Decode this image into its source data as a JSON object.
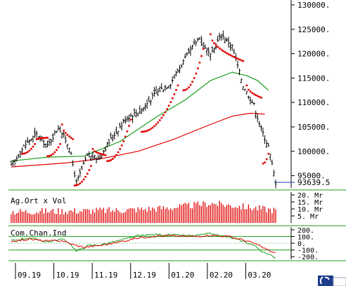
{
  "chart_data": [
    {
      "panel": "price",
      "type": "ohlc",
      "y_ticks": [
        95000,
        100000,
        105000,
        110000,
        115000,
        120000,
        125000,
        130000
      ],
      "y_tick_labels": [
        "95000.",
        "100000.",
        "105000.",
        "110000.",
        "115000.",
        "120000.",
        "125000.",
        "130000."
      ],
      "ylim": [
        92500,
        131000
      ],
      "last_value": 93639.5,
      "last_value_label": "93639.5",
      "x_labels": [
        "09.19",
        "10.19",
        "11.19",
        "12.19",
        "01.20",
        "02.20",
        "03.20"
      ],
      "grid": false,
      "anchors": [
        [
          0,
          97000
        ],
        [
          8,
          101500
        ],
        [
          14,
          103500
        ],
        [
          20,
          101000
        ],
        [
          26,
          105000
        ],
        [
          32,
          101000
        ],
        [
          36,
          93500
        ],
        [
          42,
          99000
        ],
        [
          48,
          98500
        ],
        [
          56,
          103000
        ],
        [
          64,
          107000
        ],
        [
          72,
          108500
        ],
        [
          80,
          112000
        ],
        [
          88,
          114000
        ],
        [
          96,
          119000
        ],
        [
          104,
          123500
        ],
        [
          110,
          119500
        ],
        [
          116,
          124000
        ],
        [
          122,
          121500
        ],
        [
          128,
          113500
        ],
        [
          134,
          109500
        ],
        [
          138,
          104500
        ],
        [
          142,
          101000
        ],
        [
          146,
          93640
        ]
      ],
      "overlays": [
        {
          "kind": "moving-average",
          "color": "#1a9e1a",
          "points": [
            [
              0,
              98000
            ],
            [
              20,
              98800
            ],
            [
              40,
              99000
            ],
            [
              60,
              102000
            ],
            [
              80,
              107000
            ],
            [
              96,
              110500
            ],
            [
              110,
              114500
            ],
            [
              122,
              116200
            ],
            [
              130,
              115500
            ],
            [
              136,
              114500
            ],
            [
              142,
              112500
            ]
          ]
        },
        {
          "kind": "moving-average",
          "color": "#e00000",
          "points": [
            [
              0,
              96800
            ],
            [
              30,
              97600
            ],
            [
              50,
              98500
            ],
            [
              70,
              100000
            ],
            [
              90,
              102500
            ],
            [
              110,
              105500
            ],
            [
              122,
              107200
            ],
            [
              132,
              107800
            ],
            [
              140,
              107600
            ]
          ]
        },
        {
          "kind": "parabolic-sar",
          "color": "#e00000",
          "segments": [
            {
              "from": 6,
              "to": 13,
              "start": 99500,
              "end": 101500,
              "pos": "below"
            },
            {
              "from": 14,
              "to": 20,
              "start": 102500,
              "end": 102800,
              "pos": "above"
            },
            {
              "from": 20,
              "to": 27,
              "start": 99000,
              "end": 101500,
              "pos": "below"
            },
            {
              "from": 28,
              "to": 34,
              "start": 105500,
              "end": 102500,
              "pos": "above"
            },
            {
              "from": 35,
              "to": 44,
              "start": 93000,
              "end": 97000,
              "pos": "below"
            },
            {
              "from": 45,
              "to": 52,
              "start": 100500,
              "end": 99200,
              "pos": "above"
            },
            {
              "from": 53,
              "to": 66,
              "start": 98000,
              "end": 106500,
              "pos": "below"
            },
            {
              "from": 72,
              "to": 92,
              "start": 104000,
              "end": 113500,
              "pos": "below"
            },
            {
              "from": 95,
              "to": 106,
              "start": 112500,
              "end": 121000,
              "pos": "below"
            },
            {
              "from": 110,
              "to": 128,
              "start": 124000,
              "end": 118500,
              "pos": "above"
            },
            {
              "from": 130,
              "to": 138,
              "start": 113500,
              "end": 111000,
              "pos": "above"
            },
            {
              "from": 139,
              "to": 142,
              "start": 97500,
              "end": 99500,
              "pos": "below"
            }
          ]
        }
      ]
    },
    {
      "panel": "volume",
      "type": "bar",
      "label": "Ag.Ort x Vol",
      "color": "#e00000",
      "y_ticks": [
        5,
        10,
        15,
        20
      ],
      "y_tick_labels": [
        "5. Mr",
        "10. Mr",
        "15. Mr",
        "20. Mr"
      ],
      "ylim": [
        0,
        22
      ],
      "anchors": [
        [
          0,
          8
        ],
        [
          30,
          8.5
        ],
        [
          60,
          9
        ],
        [
          90,
          11
        ],
        [
          110,
          14
        ],
        [
          125,
          12
        ],
        [
          146,
          9
        ]
      ]
    },
    {
      "panel": "oscillator",
      "type": "line",
      "label": "Com.Chan.Ind",
      "y_ticks": [
        -200,
        -100,
        0,
        100,
        200
      ],
      "y_tick_labels": [
        "-200.",
        "-100.",
        "0.",
        "100.",
        "200."
      ],
      "ylim": [
        -240,
        240
      ],
      "reference_lines": [
        -100,
        100
      ],
      "series": [
        {
          "color": "#1a9e1a",
          "points": [
            [
              0,
              40
            ],
            [
              10,
              80
            ],
            [
              20,
              20
            ],
            [
              28,
              60
            ],
            [
              32,
              10
            ],
            [
              36,
              -120
            ],
            [
              42,
              -40
            ],
            [
              50,
              -20
            ],
            [
              60,
              40
            ],
            [
              70,
              110
            ],
            [
              80,
              130
            ],
            [
              90,
              120
            ],
            [
              100,
              110
            ],
            [
              110,
              140
            ],
            [
              120,
              90
            ],
            [
              128,
              30
            ],
            [
              134,
              -30
            ],
            [
              140,
              -150
            ],
            [
              146,
              -210
            ]
          ]
        },
        {
          "color": "#e00000",
          "points": [
            [
              0,
              30
            ],
            [
              10,
              60
            ],
            [
              20,
              30
            ],
            [
              28,
              40
            ],
            [
              34,
              -20
            ],
            [
              40,
              -60
            ],
            [
              50,
              -30
            ],
            [
              60,
              20
            ],
            [
              70,
              80
            ],
            [
              80,
              110
            ],
            [
              90,
              110
            ],
            [
              100,
              100
            ],
            [
              110,
              120
            ],
            [
              120,
              100
            ],
            [
              128,
              50
            ],
            [
              134,
              0
            ],
            [
              140,
              -80
            ],
            [
              146,
              -150
            ]
          ]
        }
      ]
    }
  ],
  "watermark": {
    "icon": "brand-logo-icon",
    "color": "#1e3c8c"
  }
}
